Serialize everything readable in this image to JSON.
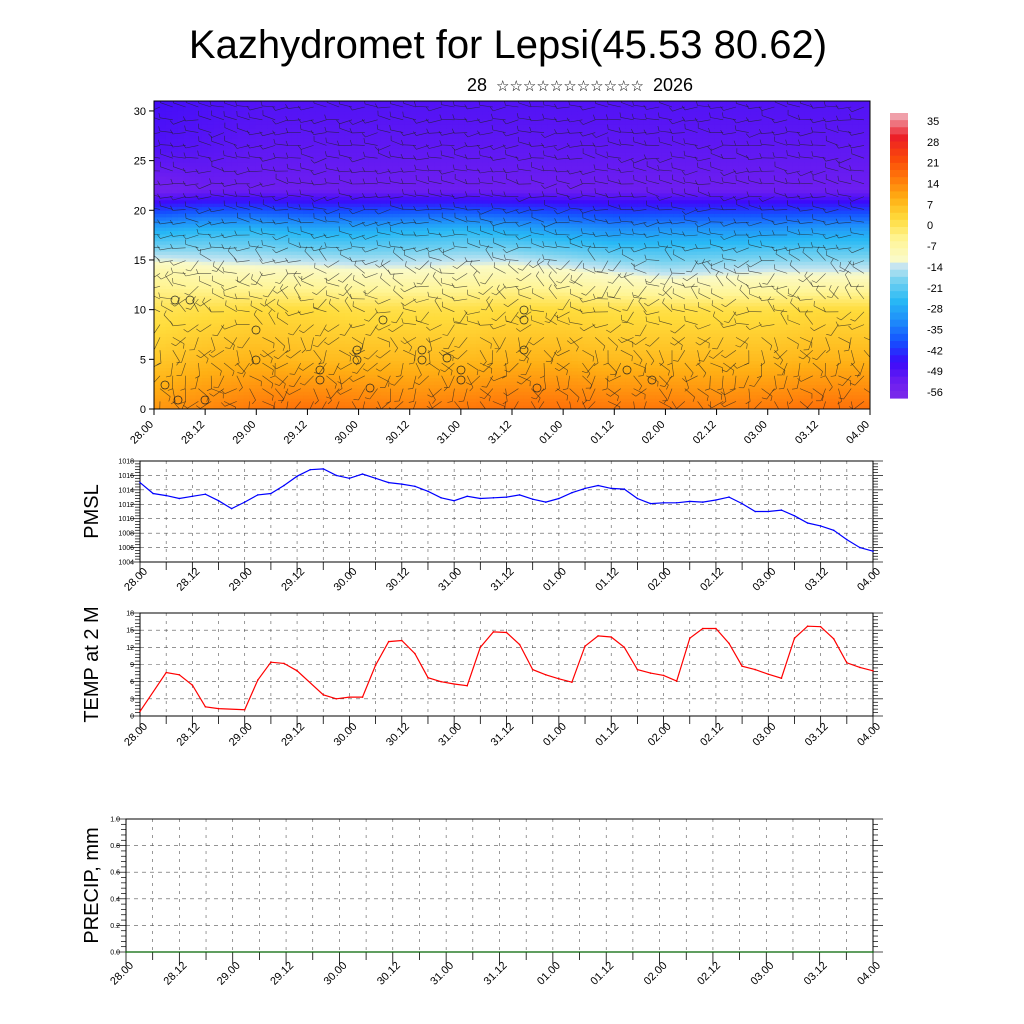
{
  "header": {
    "title": "Kazhydromet for Lepsi(45.53 80.62)",
    "subtitle_prefix": "28",
    "subtitle_mid": "☆☆☆☆☆☆☆☆☆☆☆",
    "subtitle_year": "2026"
  },
  "colors": {
    "pmsl_line": "#0000ff",
    "temp_line": "#ff0000",
    "precip_line": "#006400"
  },
  "time_labels": [
    "28.00",
    "28.12",
    "29.00",
    "29.12",
    "30.00",
    "30.12",
    "31.00",
    "31.12",
    "01.00",
    "01.12",
    "02.00",
    "02.12",
    "03.00",
    "03.12",
    "04.00"
  ],
  "chart_data": [
    {
      "type": "heatmap",
      "name": "cross-section",
      "ylim": [
        0,
        31
      ],
      "yticks": [
        0,
        5,
        10,
        15,
        20,
        25,
        30
      ],
      "colorbar_labels": [
        "35",
        "28",
        "21",
        "14",
        "7",
        "0",
        "-7",
        "-14",
        "-21",
        "-28",
        "-35",
        "-42",
        "-49",
        "-56"
      ],
      "profile_rows": [
        {
          "level": 0,
          "values": [
            10,
            12,
            14,
            15,
            14,
            13,
            14,
            15,
            15,
            14,
            14,
            13,
            14,
            15,
            15
          ]
        },
        {
          "level": 5,
          "values": [
            3,
            5,
            6,
            5,
            5,
            5,
            5,
            6,
            6,
            5,
            5,
            5,
            5,
            6,
            6
          ]
        },
        {
          "level": 10,
          "values": [
            -2,
            -1,
            0,
            0,
            -1,
            -1,
            -1,
            0,
            0,
            -1,
            -1,
            -1,
            -1,
            0,
            0
          ]
        },
        {
          "level": 14,
          "values": [
            -10,
            -12,
            -13,
            -13,
            -14,
            -14,
            -13,
            -12,
            -14,
            -16,
            -18,
            -17,
            -16,
            -16,
            -16
          ]
        },
        {
          "level": 18,
          "values": [
            -30,
            -28,
            -28,
            -30,
            -30,
            -29,
            -28,
            -30,
            -32,
            -34,
            -33,
            -33,
            -33,
            -32,
            -32
          ]
        },
        {
          "level": 22,
          "values": [
            -58,
            -56,
            -56,
            -56,
            -56,
            -56,
            -56,
            -56,
            -56,
            -56,
            -56,
            -56,
            -56,
            -56,
            -56
          ]
        },
        {
          "level": 26,
          "values": [
            -52,
            -53,
            -54,
            -54,
            -54,
            -54,
            -54,
            -54,
            -54,
            -54,
            -54,
            -54,
            -54,
            -54,
            -54
          ]
        },
        {
          "level": 31,
          "values": [
            -50,
            -51,
            -52,
            -52,
            -52,
            -52,
            -52,
            -52,
            -52,
            -52,
            -52,
            -52,
            -52,
            -52,
            -52
          ]
        }
      ]
    },
    {
      "type": "line",
      "ylabel": "PMSL",
      "ylim": [
        1004,
        1018
      ],
      "yticks": [
        "1004",
        "1006",
        "1008",
        "1010",
        "1012",
        "1014",
        "1016",
        "1018"
      ],
      "x": [
        0,
        3,
        6,
        9,
        12,
        15,
        18,
        21,
        24,
        27,
        30,
        33,
        36,
        39,
        42,
        45,
        48,
        51,
        54,
        57,
        60,
        63,
        66,
        69,
        72,
        75,
        78,
        81,
        84,
        87,
        90,
        93,
        96,
        99,
        102,
        105,
        108,
        111,
        114,
        117,
        120,
        123,
        126,
        129,
        132,
        135,
        138,
        141,
        144,
        147,
        150,
        153,
        156,
        159,
        162,
        165,
        168
      ],
      "values": [
        1015,
        1013.5,
        1013.2,
        1012.8,
        1013.1,
        1013.4,
        1012.5,
        1011.4,
        1012.3,
        1013.3,
        1013.5,
        1014.6,
        1015.9,
        1016.8,
        1016.9,
        1016.0,
        1015.6,
        1016.2,
        1015.6,
        1015.0,
        1014.8,
        1014.5,
        1013.8,
        1012.9,
        1012.5,
        1013.1,
        1012.8,
        1012.9,
        1013.0,
        1013.3,
        1012.7,
        1012.3,
        1012.8,
        1013.6,
        1014.2,
        1014.6,
        1014.2,
        1014.1,
        1012.8,
        1012.1,
        1012.2,
        1012.2,
        1012.4,
        1012.3,
        1012.6,
        1013.0,
        1012.1,
        1011.0,
        1011.0,
        1011.2,
        1010.4,
        1009.4,
        1009.0,
        1008.4,
        1007.1,
        1006.0,
        1005.5
      ]
    },
    {
      "type": "line",
      "ylabel": "TEMP at 2 M",
      "ylim": [
        0,
        18
      ],
      "yticks": [
        "0",
        "3",
        "6",
        "9",
        "12",
        "15",
        "18"
      ],
      "x": [
        0,
        6,
        9,
        12,
        15,
        18,
        24,
        27,
        30,
        33,
        36,
        42,
        45,
        48,
        51,
        54,
        57,
        60,
        63,
        66,
        69,
        72,
        75,
        78,
        81,
        84,
        87,
        90,
        93,
        96,
        99,
        102,
        105,
        108,
        111,
        114,
        117,
        120,
        123,
        126,
        129,
        132,
        135,
        138,
        141,
        144,
        147,
        150,
        153,
        156,
        159,
        162,
        165,
        168
      ],
      "values": [
        0.8,
        7.6,
        7.2,
        5.4,
        1.6,
        1.3,
        1.1,
        6.3,
        9.4,
        9.2,
        7.9,
        3.7,
        3.0,
        3.3,
        3.3,
        8.9,
        13.0,
        13.2,
        10.9,
        6.7,
        6.0,
        5.6,
        5.3,
        12.0,
        14.7,
        14.6,
        12.5,
        8.1,
        7.2,
        6.5,
        5.9,
        12.2,
        14.0,
        13.8,
        12.0,
        8.1,
        7.5,
        7.1,
        6.1,
        13.6,
        15.3,
        15.3,
        12.7,
        8.7,
        8.1,
        7.3,
        6.6,
        13.6,
        15.7,
        15.6,
        13.5,
        9.3,
        8.5,
        7.9
      ]
    },
    {
      "type": "line",
      "ylabel": "PRECIP, mm",
      "ylim": [
        0,
        1
      ],
      "yticks": [
        "0.0",
        "0.2",
        "0.4",
        "0.6",
        "0.8",
        "1.0"
      ],
      "x": [
        0,
        168
      ],
      "values": [
        0,
        0
      ]
    }
  ]
}
